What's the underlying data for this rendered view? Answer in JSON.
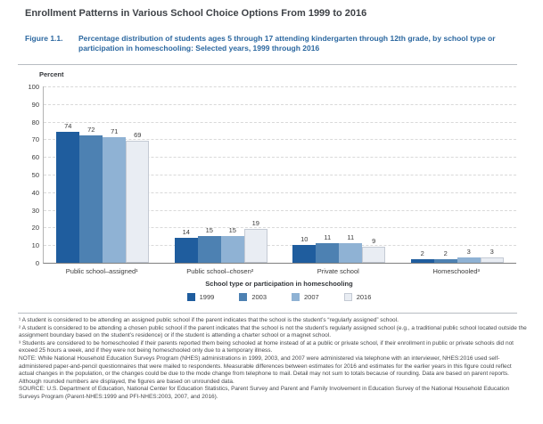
{
  "page": {
    "title": "Enrollment Patterns in Various School Choice Options From 1999 to 2016"
  },
  "figure": {
    "label": "Figure 1.1.",
    "caption": "Percentage distribution of students ages 5 through 17 attending kindergarten through 12th grade, by school type or participation in homeschooling: Selected years, 1999 through 2016"
  },
  "chart_data": {
    "type": "bar",
    "axis_label": "Percent",
    "ylim": [
      0,
      100
    ],
    "ytick_step": 10,
    "grid": "horizontal-dashed",
    "legend_position": "bottom",
    "legend_title": "School type or participation in homeschooling",
    "categories": [
      "Public school–assigned¹",
      "Public school–chosen²",
      "Private school",
      "Homeschooled³"
    ],
    "series": [
      {
        "name": "1999",
        "color": "#1f5d9e",
        "values": [
          74,
          14,
          10,
          2
        ]
      },
      {
        "name": "2003",
        "color": "#4d81b2",
        "values": [
          72,
          15,
          11,
          2
        ]
      },
      {
        "name": "2007",
        "color": "#8fb2d4",
        "values": [
          71,
          15,
          11,
          3
        ]
      },
      {
        "name": "2016",
        "color": "#e9edf3",
        "border": "#c4cad4",
        "values": [
          69,
          19,
          9,
          3
        ]
      }
    ]
  },
  "footnotes": [
    "¹ A student is considered to be attending an assigned public school if the parent indicates that the school is the student’s “regularly assigned” school.",
    "² A student is considered to be attending a chosen public school if the parent indicates that the school is not the student’s regularly assigned school (e.g., a traditional public school located outside the assignment boundary based on the student’s residence) or if the student is attending a charter school or a magnet school.",
    "³ Students are considered to be homeschooled if their parents reported them being schooled at home instead of at a public or private school, if their enrollment in public or private schools did not exceed 25 hours a week, and if they were not being homeschooled only due to a temporary illness.",
    "NOTE: While National Household Education Surveys Program (NHES) administrations in 1999, 2003, and 2007 were administered via telephone with an interviewer, NHES:2016 used self-administered paper-and-pencil questionnaires that were mailed to respondents. Measurable differences between estimates for 2016 and estimates for the earlier years in this figure could reflect actual changes in the population, or the changes could be due to the mode change from telephone to mail. Detail may not sum to totals because of rounding. Data are based on parent reports. Although rounded numbers are displayed, the figures are based on unrounded data.",
    "SOURCE: U.S. Department of Education, National Center for Education Statistics, Parent Survey and Parent and Family Involvement in Education Survey of the National Household Education Surveys Program (Parent-NHES:1999 and PFI-NHES:2003, 2007, and 2016)."
  ]
}
